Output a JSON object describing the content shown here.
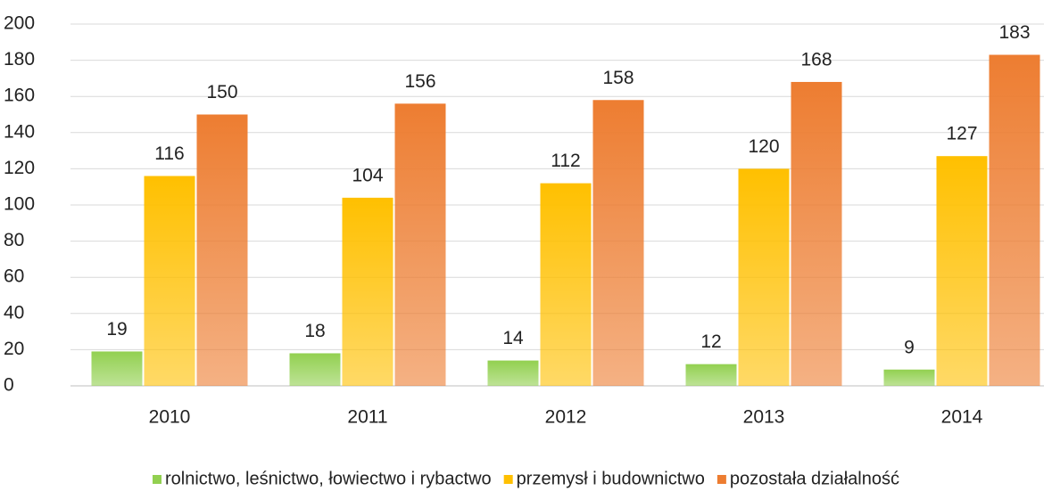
{
  "chart_data": {
    "type": "bar",
    "categories": [
      "2010",
      "2011",
      "2012",
      "2013",
      "2014"
    ],
    "series": [
      {
        "name": "rolnictwo, leśnictwo, łowiectwo i rybactwo",
        "color": "#92d050",
        "values": [
          19,
          18,
          14,
          12,
          9
        ]
      },
      {
        "name": "przemysł i budownictwo",
        "color": "#ffc000",
        "values": [
          116,
          104,
          112,
          120,
          127
        ]
      },
      {
        "name": "pozostała działalność",
        "color": "#ed7d31",
        "values": [
          150,
          156,
          158,
          168,
          183
        ]
      }
    ],
    "ylim": [
      0,
      200
    ],
    "yticks": [
      0,
      20,
      40,
      60,
      80,
      100,
      120,
      140,
      160,
      180,
      200
    ],
    "grid": true,
    "legend": "bottom"
  }
}
